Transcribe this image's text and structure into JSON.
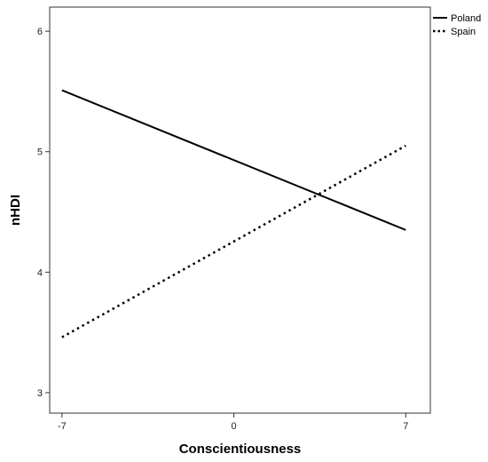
{
  "chart_data": {
    "type": "line",
    "title": "",
    "xlabel": "Conscientiousness",
    "ylabel": "nHDI",
    "x": [
      -7,
      7
    ],
    "xticks": [
      -7,
      0,
      7
    ],
    "yticks": [
      3,
      4,
      5,
      6
    ],
    "xlim": [
      -7.5,
      8
    ],
    "ylim": [
      2.83,
      6.2
    ],
    "grid": false,
    "legend_position": "top-right",
    "series": [
      {
        "name": "Poland",
        "values": [
          5.51,
          4.35
        ],
        "style": "solid",
        "color": "#000000"
      },
      {
        "name": "Spain",
        "values": [
          3.46,
          5.05
        ],
        "style": "dotted",
        "color": "#000000"
      }
    ]
  }
}
